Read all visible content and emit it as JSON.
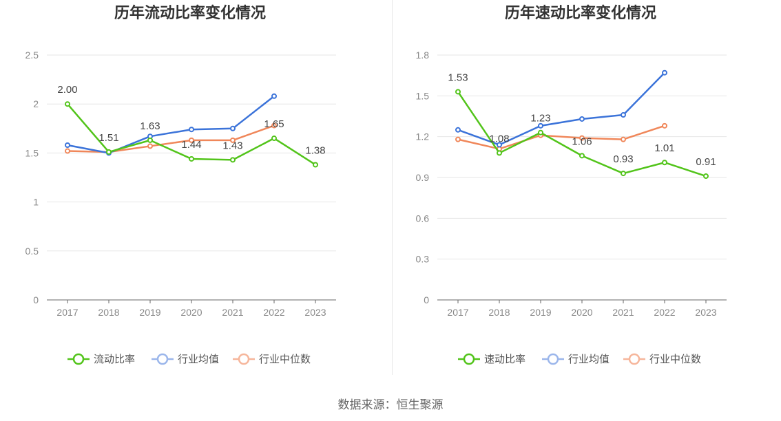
{
  "chart_data": [
    {
      "type": "line",
      "title": "历年流动比率变化情况",
      "x": [
        "2017",
        "2018",
        "2019",
        "2020",
        "2021",
        "2022",
        "2023"
      ],
      "ylim": [
        0,
        2.5
      ],
      "yticks": [
        "0",
        "0.5",
        "1",
        "1.5",
        "2",
        "2.5"
      ],
      "yticks_values": [
        0,
        0.5,
        1,
        1.5,
        2,
        2.5
      ],
      "grid": true,
      "legend_position": "bottom",
      "series": [
        {
          "name": "流动比率",
          "color": "#52c41a",
          "values": [
            2.0,
            1.51,
            1.63,
            1.44,
            1.43,
            1.65,
            1.38
          ],
          "labels": [
            "2.00",
            "1.51",
            "1.63",
            "1.44",
            "1.43",
            "1.65",
            "1.38"
          ]
        },
        {
          "name": "行业均值",
          "color": "#3b73d9",
          "values": [
            1.58,
            1.5,
            1.67,
            1.74,
            1.75,
            2.08,
            null
          ]
        },
        {
          "name": "行业中位数",
          "color": "#f0875a",
          "values": [
            1.52,
            1.51,
            1.57,
            1.63,
            1.63,
            1.78,
            null
          ]
        }
      ]
    },
    {
      "type": "line",
      "title": "历年速动比率变化情况",
      "x": [
        "2017",
        "2018",
        "2019",
        "2020",
        "2021",
        "2022",
        "2023"
      ],
      "ylim": [
        0,
        1.8
      ],
      "yticks": [
        "0",
        "0.3",
        "0.6",
        "0.9",
        "1.2",
        "1.5",
        "1.8"
      ],
      "yticks_values": [
        0,
        0.3,
        0.6,
        0.9,
        1.2,
        1.5,
        1.8
      ],
      "grid": true,
      "legend_position": "bottom",
      "series": [
        {
          "name": "速动比率",
          "color": "#52c41a",
          "values": [
            1.53,
            1.08,
            1.23,
            1.06,
            0.93,
            1.01,
            0.91
          ],
          "labels": [
            "1.53",
            "1.08",
            "1.23",
            "1.06",
            "0.93",
            "1.01",
            "0.91"
          ]
        },
        {
          "name": "行业均值",
          "color": "#3b73d9",
          "values": [
            1.25,
            1.14,
            1.28,
            1.33,
            1.36,
            1.67,
            null
          ]
        },
        {
          "name": "行业中位数",
          "color": "#f0875a",
          "values": [
            1.18,
            1.11,
            1.21,
            1.19,
            1.18,
            1.28,
            null
          ]
        }
      ]
    }
  ],
  "source": "数据来源：恒生聚源"
}
